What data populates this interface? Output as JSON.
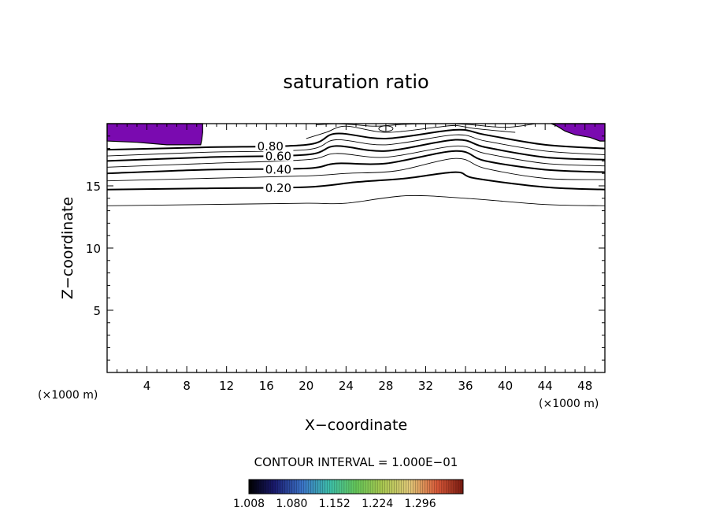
{
  "chart_data": {
    "type": "contour",
    "title": "saturation ratio",
    "xlabel": "X−coordinate",
    "ylabel": "Z−coordinate",
    "x_unit_left": "(×1000 m)",
    "x_unit_right": "(×1000 m)",
    "xlim": [
      0,
      50
    ],
    "ylim": [
      0,
      20
    ],
    "x_ticks": [
      "4",
      "8",
      "12",
      "16",
      "20",
      "24",
      "28",
      "32",
      "36",
      "40",
      "44",
      "48"
    ],
    "y_ticks": [
      "5",
      "10",
      "15"
    ],
    "contour_interval_text": "CONTOUR INTERVAL = 1.000E−01",
    "contour_labels": [
      "0.80",
      "0.60",
      "0.40",
      "0.20"
    ],
    "colorbar_labels": [
      "1.008",
      "1.080",
      "1.152",
      "1.224",
      "1.296"
    ],
    "fill_color": "#7a0ab0",
    "contours": [
      {
        "level": 0.1,
        "bold": false,
        "x": [
          0,
          10,
          20,
          24,
          30,
          36,
          44,
          50
        ],
        "y": [
          13.4,
          13.5,
          13.6,
          13.6,
          14.2,
          14.0,
          13.5,
          13.4
        ]
      },
      {
        "level": 0.2,
        "bold": true,
        "label": "0.20",
        "label_x": 17.2,
        "x": [
          0,
          10,
          20,
          25,
          30,
          35,
          37,
          44,
          50
        ],
        "y": [
          14.7,
          14.8,
          14.9,
          15.3,
          15.6,
          16.1,
          15.6,
          14.9,
          14.7
        ]
      },
      {
        "level": 0.3,
        "bold": false,
        "x": [
          0,
          10,
          20,
          24,
          29,
          35,
          38,
          44,
          50
        ],
        "y": [
          15.4,
          15.6,
          15.8,
          16.0,
          16.2,
          17.2,
          16.4,
          15.6,
          15.5
        ]
      },
      {
        "level": 0.4,
        "bold": true,
        "label": "0.40",
        "label_x": 17.2,
        "x": [
          0,
          10,
          20,
          23,
          28,
          35,
          38,
          44,
          50
        ],
        "y": [
          16.0,
          16.3,
          16.4,
          16.8,
          16.8,
          17.8,
          17.0,
          16.3,
          16.1
        ]
      },
      {
        "level": 0.5,
        "bold": false,
        "x": [
          0,
          10,
          20,
          23,
          28,
          35,
          38,
          44,
          50
        ],
        "y": [
          16.5,
          16.8,
          17.1,
          17.6,
          17.3,
          18.2,
          17.6,
          16.8,
          16.6
        ]
      },
      {
        "level": 0.6,
        "bold": true,
        "label": "0.60",
        "label_x": 17.2,
        "x": [
          0,
          10,
          20,
          23,
          28,
          35,
          38,
          44,
          50
        ],
        "y": [
          17.0,
          17.3,
          17.5,
          18.2,
          17.8,
          18.7,
          18.1,
          17.3,
          17.1
        ]
      },
      {
        "level": 0.7,
        "bold": false,
        "x": [
          0,
          10,
          20,
          23,
          28,
          35,
          38,
          44,
          50
        ],
        "y": [
          17.4,
          17.7,
          17.9,
          18.7,
          18.3,
          19.1,
          18.6,
          17.8,
          17.5
        ]
      },
      {
        "level": 0.8,
        "bold": true,
        "label": "0.80",
        "label_x": 16.4,
        "x": [
          0,
          10,
          20,
          23,
          28,
          35,
          38,
          44,
          50
        ],
        "y": [
          17.9,
          18.1,
          18.3,
          19.2,
          18.8,
          19.5,
          19.1,
          18.3,
          18.0
        ]
      },
      {
        "level": 0.9,
        "bold": false,
        "x": [
          20,
          22,
          24,
          28,
          33,
          35,
          37,
          41
        ],
        "y": [
          18.8,
          19.3,
          19.8,
          19.3,
          19.7,
          19.85,
          19.6,
          19.3
        ]
      },
      {
        "level": 0.95,
        "bold": false,
        "x": [
          21,
          23,
          25,
          27,
          30,
          33,
          36,
          40,
          43
        ],
        "y": [
          19.9,
          19.99,
          19.9,
          19.8,
          19.95,
          19.99,
          19.95,
          19.7,
          19.99
        ]
      }
    ],
    "filled_regions": [
      {
        "x": [
          0,
          9.6,
          9.6,
          9.5,
          9.4,
          8.8,
          6,
          3,
          0
        ],
        "y": [
          20,
          20,
          19.3,
          18.7,
          18.3,
          18.3,
          18.3,
          18.5,
          18.6
        ]
      },
      {
        "x": [
          44.6,
          50,
          50,
          49.5,
          48.5,
          47,
          46,
          45.2
        ],
        "y": [
          20,
          20,
          18.6,
          18.6,
          18.9,
          19.1,
          19.4,
          19.8
        ]
      }
    ]
  }
}
